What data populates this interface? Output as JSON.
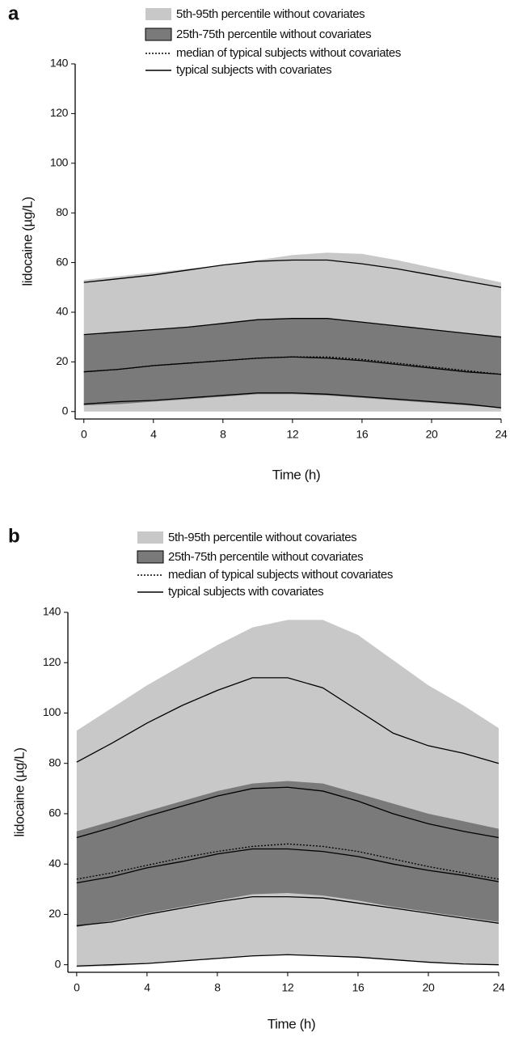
{
  "chart_data": [
    {
      "type": "area",
      "panel": "a",
      "xlabel": "Time (h)",
      "ylabel": "lidocaine (µg/L)",
      "x": [
        0,
        2,
        4,
        6,
        8,
        10,
        12,
        14,
        16,
        18,
        20,
        22,
        24
      ],
      "xlim": [
        -0.5,
        24
      ],
      "xticks": [
        0,
        4,
        8,
        12,
        16,
        20,
        24
      ],
      "ylim": [
        -3,
        140
      ],
      "yticks": [
        0,
        20,
        40,
        60,
        80,
        100,
        120,
        140
      ],
      "series": [
        {
          "name": "5th-95th percentile without covariates",
          "type": "band",
          "color": "#c8c8c8",
          "upper": [
            53,
            54.5,
            56,
            57.5,
            59,
            61,
            63,
            64,
            63.5,
            61,
            58,
            55,
            52
          ],
          "lower": [
            0,
            0,
            0,
            0,
            0,
            0,
            0,
            0,
            0,
            0,
            0,
            0,
            0
          ]
        },
        {
          "name": "25th-75th percentile without covariates",
          "type": "band",
          "color": "#7a7a7a",
          "upper": [
            31,
            32,
            33,
            34,
            35.5,
            37,
            37.5,
            37.5,
            36,
            34.5,
            33,
            31.5,
            30
          ],
          "lower": [
            2.5,
            3,
            4,
            5,
            6,
            7,
            7,
            6.5,
            5.5,
            4.5,
            3.5,
            2.5,
            1.5
          ]
        },
        {
          "name": "median of typical subjects without covariates",
          "type": "line",
          "style": "dotted",
          "color": "#000000",
          "values": [
            [
              16,
              17,
              18.5,
              19.5,
              20.5,
              21.5,
              22,
              22,
              21,
              19.5,
              18,
              16.5,
              15
            ]
          ]
        },
        {
          "name": "typical subjects with covariates",
          "type": "line",
          "style": "solid",
          "color": "#000000",
          "values": [
            [
              52,
              53.5,
              55,
              57,
              59,
              60.5,
              61,
              61,
              59.5,
              57.5,
              55,
              52.5,
              50
            ],
            [
              31,
              32,
              33,
              34,
              35.5,
              37,
              37.5,
              37.5,
              36,
              34.5,
              33,
              31.5,
              30
            ],
            [
              16,
              17,
              18.5,
              19.5,
              20.5,
              21.5,
              22,
              21.5,
              20.5,
              19,
              17.5,
              16,
              15
            ],
            [
              3,
              4,
              4.5,
              5.5,
              6.5,
              7.5,
              7.5,
              7,
              6,
              5,
              4,
              3,
              1.5
            ]
          ]
        }
      ]
    },
    {
      "type": "area",
      "panel": "b",
      "xlabel": "Time (h)",
      "ylabel": "lidocaine (µg/L)",
      "x": [
        0,
        2,
        4,
        6,
        8,
        10,
        12,
        14,
        16,
        18,
        20,
        22,
        24
      ],
      "xlim": [
        -0.5,
        24
      ],
      "xticks": [
        0,
        4,
        8,
        12,
        16,
        20,
        24
      ],
      "ylim": [
        -3,
        140
      ],
      "yticks": [
        0,
        20,
        40,
        60,
        80,
        100,
        120,
        140
      ],
      "series": [
        {
          "name": "5th-95th percentile without covariates",
          "type": "band",
          "color": "#c8c8c8",
          "upper": [
            93,
            102,
            111,
            119,
            127,
            134,
            137,
            137,
            131,
            121,
            111,
            103,
            94
          ],
          "lower": [
            -1,
            -0.5,
            0.5,
            1.5,
            2.5,
            3.5,
            4,
            3.5,
            3,
            2,
            1,
            0.5,
            0
          ]
        },
        {
          "name": "25th-75th percentile without covariates",
          "type": "band",
          "color": "#7a7a7a",
          "upper": [
            53,
            57,
            61,
            65,
            69,
            72,
            73,
            72,
            68,
            64,
            60,
            57,
            54
          ],
          "lower": [
            15,
            17.5,
            20.5,
            23,
            25.5,
            28,
            28.5,
            27.5,
            25.5,
            23,
            21,
            19,
            17
          ]
        },
        {
          "name": "median of typical subjects without covariates",
          "type": "line",
          "style": "dotted",
          "color": "#000000",
          "values": [
            [
              34,
              36.5,
              39.5,
              42.5,
              45,
              47,
              48,
              47,
              45,
              42,
              39,
              36.5,
              34
            ]
          ]
        },
        {
          "name": "typical subjects with covariates",
          "type": "line",
          "style": "solid",
          "color": "#000000",
          "values": [
            [
              80.5,
              88,
              96,
              103,
              109,
              114,
              114,
              110,
              101,
              92,
              87,
              84,
              80
            ],
            [
              50.5,
              54.5,
              59,
              63,
              67,
              70,
              70.5,
              69,
              65,
              60,
              56,
              53,
              50.5
            ],
            [
              32.5,
              35,
              38.5,
              41,
              44,
              46,
              46,
              45,
              43,
              40,
              37.5,
              35.5,
              33
            ],
            [
              15.5,
              17,
              20,
              22.5,
              25,
              27,
              27,
              26.5,
              24.5,
              22.5,
              20.5,
              18.5,
              16.5
            ],
            [
              -0.5,
              0,
              0.5,
              1.5,
              2.5,
              3.5,
              4,
              3.5,
              3,
              2,
              1,
              0.3,
              0
            ]
          ]
        }
      ]
    }
  ]
}
